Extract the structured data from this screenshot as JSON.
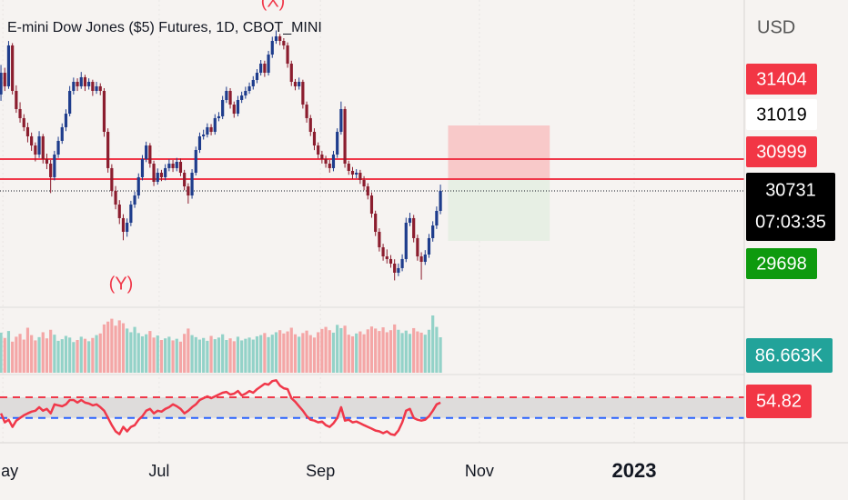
{
  "chart_data": {
    "type": "candlestick",
    "title": "E-mini Dow Jones ($5) Futures, 1D, CBOT_MINI",
    "currency": "USD",
    "annotations": [
      "(X)",
      "(Y)"
    ],
    "xlim": [
      -0.25,
      194.5
    ],
    "xticks": [
      {
        "value": 0.5,
        "label": "May"
      },
      {
        "value": 41.4,
        "label": "Jul"
      },
      {
        "value": 83.6,
        "label": "Sep"
      },
      {
        "value": 125.2,
        "label": "Nov"
      },
      {
        "value": 165.7,
        "label": "2023"
      }
    ],
    "ylim": [
      29117,
      33442
    ],
    "up_color": "#1e3c8c",
    "down_color": "#8b1d2e",
    "ohlc": [
      [
        32100,
        32520,
        32010,
        32409
      ],
      [
        32409,
        32480,
        32150,
        32216
      ],
      [
        32216,
        32860,
        32180,
        32797
      ],
      [
        32797,
        32830,
        32100,
        32151
      ],
      [
        32151,
        32230,
        31840,
        31893
      ],
      [
        31893,
        31990,
        31700,
        31764
      ],
      [
        31764,
        31820,
        31580,
        31635
      ],
      [
        31635,
        31700,
        31420,
        31506
      ],
      [
        31506,
        31560,
        31300,
        31376
      ],
      [
        31376,
        31420,
        31150,
        31247
      ],
      [
        31247,
        31580,
        31200,
        31506
      ],
      [
        31506,
        31540,
        31120,
        31183
      ],
      [
        31183,
        31260,
        31040,
        31118
      ],
      [
        31118,
        31170,
        30700,
        30925
      ],
      [
        30925,
        31300,
        30880,
        31247
      ],
      [
        31247,
        31500,
        31200,
        31441
      ],
      [
        31441,
        31690,
        31400,
        31635
      ],
      [
        31635,
        31890,
        31580,
        31828
      ],
      [
        31828,
        32220,
        31790,
        32151
      ],
      [
        32151,
        32340,
        32100,
        32280
      ],
      [
        32280,
        32330,
        32150,
        32216
      ],
      [
        32216,
        32420,
        32180,
        32345
      ],
      [
        32345,
        32380,
        32150,
        32216
      ],
      [
        32216,
        32330,
        32170,
        32280
      ],
      [
        32280,
        32310,
        32080,
        32151
      ],
      [
        32151,
        32280,
        32110,
        32216
      ],
      [
        32216,
        32260,
        32090,
        32151
      ],
      [
        32151,
        32190,
        31500,
        31570
      ],
      [
        31570,
        31620,
        30990,
        31054
      ],
      [
        31054,
        31110,
        30650,
        30731
      ],
      [
        30731,
        30800,
        30470,
        30537
      ],
      [
        30537,
        30600,
        30260,
        30344
      ],
      [
        30344,
        30400,
        30030,
        30150
      ],
      [
        30150,
        30340,
        30080,
        30279
      ],
      [
        30279,
        30590,
        30230,
        30537
      ],
      [
        30537,
        30720,
        30490,
        30666
      ],
      [
        30666,
        30980,
        30620,
        30925
      ],
      [
        30925,
        31240,
        30880,
        31183
      ],
      [
        31183,
        31430,
        31140,
        31376
      ],
      [
        31376,
        31410,
        31060,
        31118
      ],
      [
        31118,
        31160,
        30800,
        30860
      ],
      [
        30860,
        31050,
        30820,
        30989
      ],
      [
        30989,
        31030,
        30870,
        30925
      ],
      [
        30925,
        31110,
        30880,
        31054
      ],
      [
        31054,
        31180,
        31010,
        31118
      ],
      [
        31118,
        31170,
        31000,
        31054
      ],
      [
        31054,
        31200,
        31010,
        31144
      ],
      [
        31144,
        31190,
        30940,
        30989
      ],
      [
        30989,
        31030,
        30740,
        30795
      ],
      [
        30795,
        30840,
        30550,
        30666
      ],
      [
        30666,
        31040,
        30620,
        30989
      ],
      [
        30989,
        31360,
        30950,
        31312
      ],
      [
        31312,
        31560,
        31270,
        31506
      ],
      [
        31506,
        31600,
        31460,
        31531
      ],
      [
        31531,
        31690,
        31490,
        31635
      ],
      [
        31635,
        31680,
        31520,
        31570
      ],
      [
        31570,
        31820,
        31530,
        31764
      ],
      [
        31764,
        31850,
        31720,
        31790
      ],
      [
        31790,
        32080,
        31750,
        32022
      ],
      [
        32022,
        32210,
        31980,
        32151
      ],
      [
        32151,
        32190,
        31900,
        31957
      ],
      [
        31957,
        32000,
        31770,
        31828
      ],
      [
        31828,
        32080,
        31790,
        32022
      ],
      [
        32022,
        32140,
        31980,
        32086
      ],
      [
        32086,
        32210,
        32040,
        32151
      ],
      [
        32151,
        32270,
        32110,
        32216
      ],
      [
        32216,
        32360,
        32170,
        32306
      ],
      [
        32306,
        32460,
        32260,
        32409
      ],
      [
        32409,
        32590,
        32370,
        32538
      ],
      [
        32538,
        32580,
        32350,
        32409
      ],
      [
        32409,
        32720,
        32370,
        32667
      ],
      [
        32667,
        32920,
        32620,
        32861
      ],
      [
        32861,
        33010,
        32820,
        32926
      ],
      [
        32926,
        32960,
        32800,
        32861
      ],
      [
        32861,
        32900,
        32740,
        32797
      ],
      [
        32797,
        32840,
        32480,
        32538
      ],
      [
        32538,
        32580,
        32220,
        32280
      ],
      [
        32280,
        32320,
        32160,
        32216
      ],
      [
        32216,
        32340,
        32170,
        32280
      ],
      [
        32280,
        32310,
        31900,
        31957
      ],
      [
        31957,
        32000,
        31700,
        31764
      ],
      [
        31764,
        31810,
        31510,
        31570
      ],
      [
        31570,
        31620,
        31310,
        31376
      ],
      [
        31376,
        31420,
        31190,
        31247
      ],
      [
        31247,
        31300,
        31120,
        31183
      ],
      [
        31183,
        31230,
        31060,
        31118
      ],
      [
        31118,
        31170,
        30990,
        31054
      ],
      [
        31054,
        31300,
        31010,
        31247
      ],
      [
        31247,
        31620,
        31200,
        31570
      ],
      [
        31570,
        32000,
        31530,
        31893
      ],
      [
        31893,
        31930,
        31060,
        31118
      ],
      [
        31118,
        31160,
        30960,
        31015
      ],
      [
        31015,
        31070,
        30900,
        30963
      ],
      [
        30963,
        31040,
        30910,
        30989
      ],
      [
        30989,
        31030,
        30830,
        30886
      ],
      [
        30886,
        30940,
        30740,
        30795
      ],
      [
        30795,
        30840,
        30610,
        30666
      ],
      [
        30666,
        30710,
        30350,
        30408
      ],
      [
        30408,
        30450,
        30090,
        30150
      ],
      [
        30150,
        30200,
        29870,
        29930
      ],
      [
        29930,
        29980,
        29740,
        29801
      ],
      [
        29801,
        29900,
        29700,
        29763
      ],
      [
        29763,
        29820,
        29640,
        29698
      ],
      [
        29698,
        29760,
        29460,
        29569
      ],
      [
        29569,
        29700,
        29520,
        29634
      ],
      [
        29634,
        29830,
        29590,
        29763
      ],
      [
        29763,
        30350,
        29720,
        30279
      ],
      [
        30279,
        30420,
        30230,
        30344
      ],
      [
        30344,
        30390,
        30000,
        30060
      ],
      [
        30060,
        30110,
        29740,
        29801
      ],
      [
        29801,
        29860,
        29470,
        29724
      ],
      [
        29724,
        29890,
        29680,
        29827
      ],
      [
        29827,
        30120,
        29780,
        30060
      ],
      [
        30060,
        30300,
        30010,
        30240
      ],
      [
        30240,
        30510,
        30190,
        30447
      ],
      [
        30447,
        30820,
        30400,
        30731
      ]
    ],
    "hlines": {
      "values": [
        31183,
        30899
      ],
      "color": "#f0384a"
    },
    "short_position": {
      "start": 117,
      "end": 143.6,
      "entry": 30899,
      "stop": 31660,
      "target": 30021,
      "stop_color": "#f8c9c9",
      "target_color": "#e7efe4"
    },
    "price_tags": [
      {
        "value": 31404,
        "color": "#f23645",
        "text_color": "#ffffff"
      },
      {
        "value": 31019,
        "color": "#ffffff",
        "text_color": "#000000"
      },
      {
        "value": 30999,
        "color": "#f23645",
        "text_color": "#ffffff"
      },
      {
        "value": 29698,
        "color": "#0e9a0e",
        "text_color": "#ffffff"
      }
    ],
    "countdown": "07:03:35",
    "volume": {
      "values": [
        98000,
        85000,
        102000,
        76000,
        88000,
        95000,
        81000,
        110000,
        92000,
        79000,
        87000,
        99000,
        84000,
        105000,
        93000,
        78000,
        82000,
        90000,
        86000,
        75000,
        80000,
        88000,
        83000,
        77000,
        85000,
        92000,
        96000,
        118000,
        125000,
        132000,
        115000,
        128000,
        121000,
        108000,
        99000,
        112000,
        97000,
        89000,
        94000,
        102000,
        86000,
        91000,
        80000,
        84000,
        88000,
        79000,
        83000,
        76000,
        95000,
        108000,
        92000,
        87000,
        81000,
        85000,
        78000,
        90000,
        82000,
        86000,
        94000,
        80000,
        84000,
        77000,
        88000,
        79000,
        83000,
        86000,
        81000,
        89000,
        92000,
        97000,
        87000,
        93000,
        99000,
        104000,
        96000,
        101000,
        110000,
        94000,
        88000,
        97000,
        103000,
        92000,
        86000,
        99000,
        107000,
        112000,
        104000,
        98000,
        117000,
        109000,
        115000,
        93000,
        89000,
        96000,
        101000,
        94000,
        106000,
        113000,
        108000,
        102000,
        111000,
        99000,
        104000,
        118000,
        105000,
        97000,
        103000,
        95000,
        109000,
        101000,
        98000,
        93000,
        105000,
        140000,
        112000,
        86663
      ],
      "last_label": "86.663K",
      "ylim": [
        0,
        160000
      ],
      "up_color": "#93d2c8",
      "down_color": "#f4a6a6",
      "tag_color": "#22a39a"
    },
    "rsi": {
      "values": [
        44.4,
        35.7,
        38.3,
        31.3,
        37.4,
        40,
        42.6,
        44.4,
        46.1,
        47,
        50.4,
        47,
        48.7,
        44.4,
        53.1,
        52.2,
        51.3,
        53.1,
        57.4,
        57.4,
        54.8,
        57.4,
        54.8,
        53.9,
        52.2,
        53.1,
        50.4,
        47,
        40,
        33,
        27,
        24.3,
        31.3,
        27,
        31.3,
        33,
        38.3,
        41.7,
        47,
        48.7,
        44.4,
        47,
        46.1,
        48.7,
        50.4,
        53.1,
        51.3,
        48.7,
        44.4,
        47,
        50.4,
        53.1,
        57.4,
        59.1,
        60.9,
        59.1,
        60.9,
        62.6,
        64.4,
        65.2,
        62.6,
        63.5,
        66.1,
        61.8,
        63.5,
        66.1,
        64.4,
        67.8,
        70.5,
        73.1,
        72.2,
        75.7,
        76.5,
        71.3,
        68.7,
        67.8,
        59.1,
        55.7,
        51.3,
        47,
        41.7,
        38.3,
        37.4,
        35.7,
        36.5,
        33,
        31.3,
        34.8,
        40,
        50.4,
        37.4,
        38.3,
        35.7,
        36.5,
        34.8,
        33,
        31.3,
        29.6,
        27.8,
        27,
        25.2,
        27,
        24.3,
        23.5,
        27.8,
        35.7,
        47,
        48.7,
        40,
        38.3,
        37.4,
        38.3,
        41.7,
        47,
        53.1,
        54.82
      ],
      "levels": [
        60,
        40
      ],
      "level_colors": [
        "#f0384a",
        "#2962ff"
      ],
      "ylim": [
        16,
        82
      ],
      "color": "#f0384a",
      "band_color": "#dedcdb"
    }
  }
}
